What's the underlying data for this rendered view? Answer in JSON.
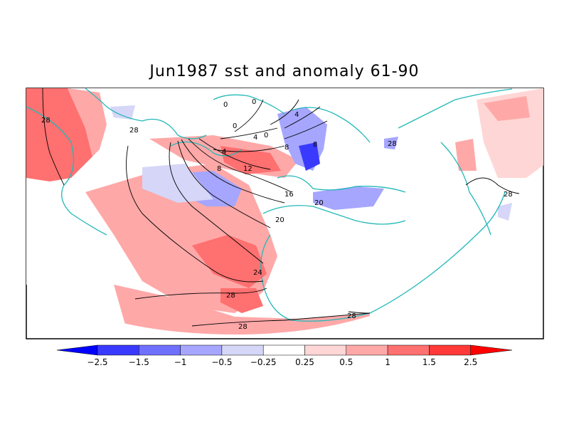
{
  "title": "Jun1987 sst and anomaly 61-90",
  "map": {
    "projection": "polar stereographic (Northern Hemisphere sector)",
    "coastline_color": "#22b8b8",
    "graticule": "dotted",
    "contour_levels": [
      "28",
      "0",
      "0",
      "0",
      "4",
      "4",
      "0",
      "4",
      "8",
      "8",
      "8",
      "12",
      "16",
      "20",
      "20",
      "24",
      "28",
      "28",
      "28",
      "28"
    ]
  },
  "colorbar": {
    "labels": [
      "−2.5",
      "−1.5",
      "−1",
      "−0.5",
      "−0.25",
      "0.25",
      "0.5",
      "1",
      "1.5",
      "2.5"
    ],
    "colors": [
      "#0000ff",
      "#3a3aff",
      "#7070ff",
      "#a6a6ff",
      "#d6d6f8",
      "#ffffff",
      "#ffd6d6",
      "#ffa8a8",
      "#ff7070",
      "#ff3838",
      "#ff0000"
    ]
  },
  "colors": {
    "positive_strong": "#ff5a5a",
    "positive_mid": "#ff9a9a",
    "positive_light": "#ffd2d2",
    "negative_light": "#d6d6f8",
    "negative_mid": "#9a9aff",
    "negative_strong": "#3a3aff"
  }
}
